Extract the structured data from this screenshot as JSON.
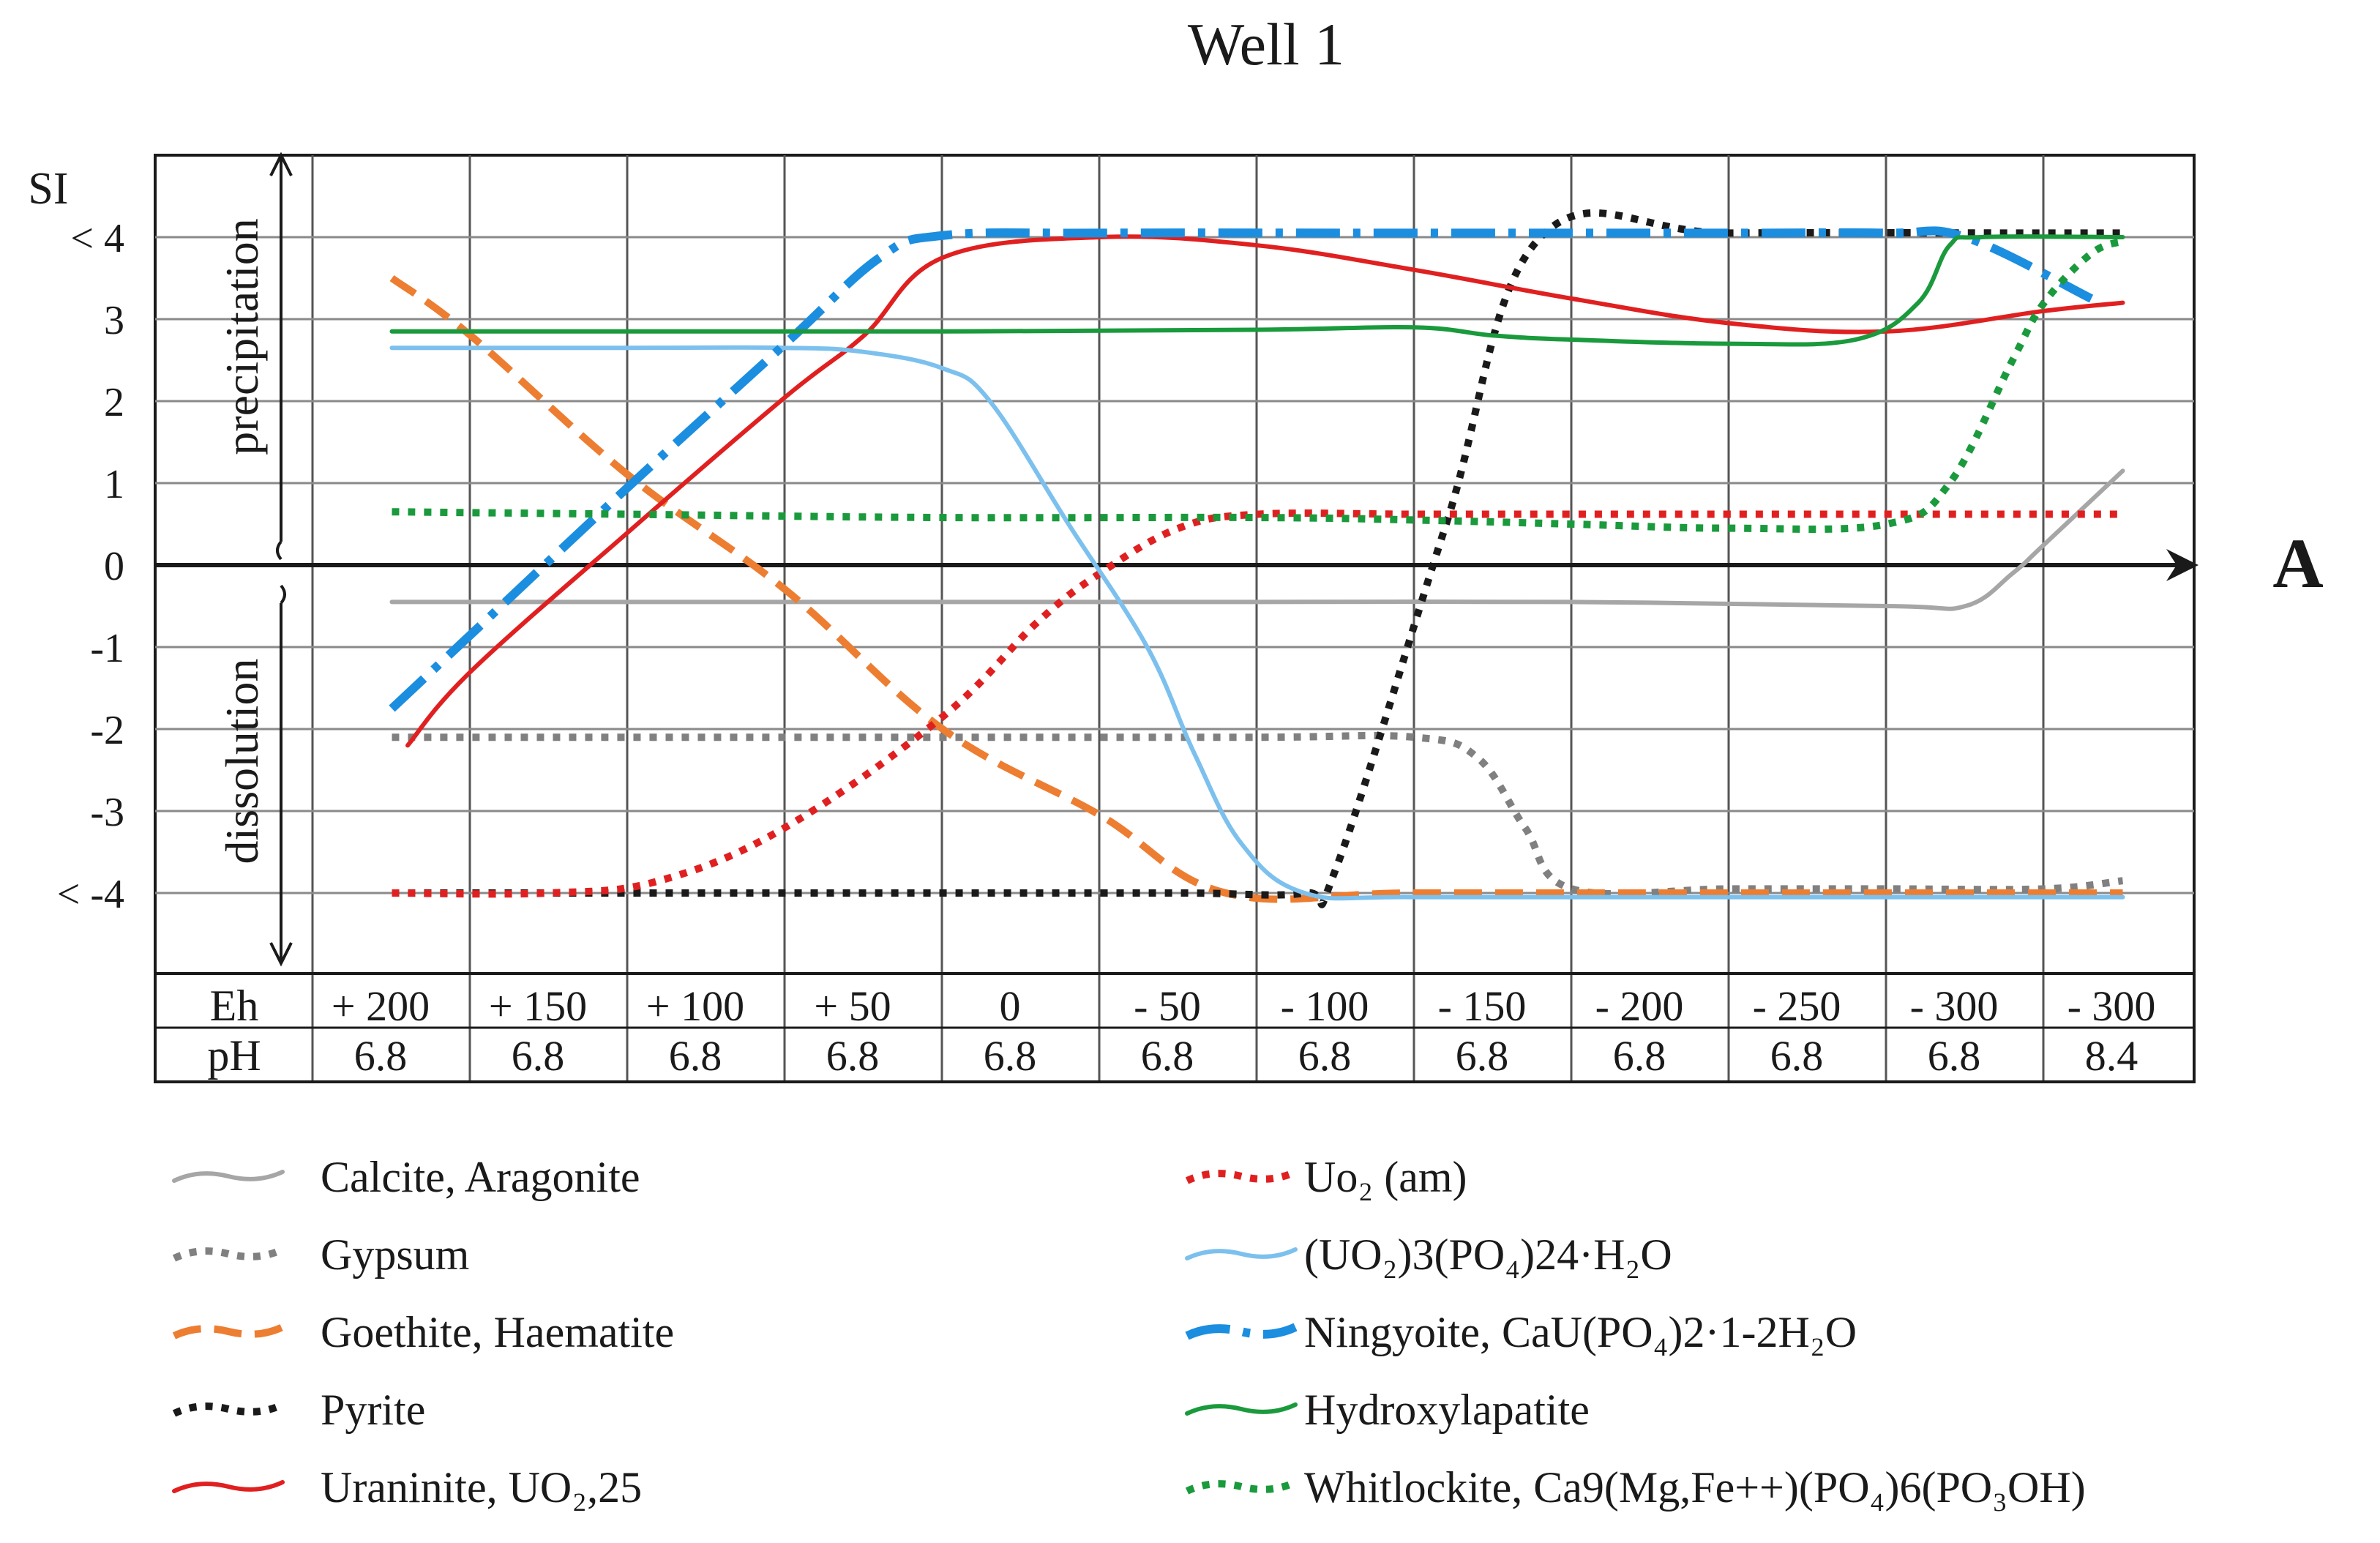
{
  "chart_data": {
    "type": "line",
    "title": "Well 1",
    "ylabel": "SI",
    "ylim": [
      -5,
      5
    ],
    "y_ticks": [
      "< 4",
      "3",
      "2",
      "1",
      "0",
      "-1",
      "-2",
      "-3",
      "< -4"
    ],
    "side_labels": {
      "upper": "precipitation",
      "lower": "dissolution"
    },
    "axis_end_label": "A",
    "row_labels": {
      "eh": "Eh",
      "ph": "pH"
    },
    "eh": [
      "+ 200",
      "+ 150",
      "+ 100",
      "+ 50",
      "0",
      "- 50",
      "- 100",
      "- 150",
      "- 200",
      "- 250",
      "- 300",
      "- 300"
    ],
    "ph": [
      "6.8",
      "6.8",
      "6.8",
      "6.8",
      "6.8",
      "6.8",
      "6.8",
      "6.8",
      "6.8",
      "6.8",
      "6.8",
      "8.4"
    ],
    "series": [
      {
        "name": "Calcite, Aragonite",
        "color": "#a6a6a6",
        "style": "solid",
        "points": [
          [
            0.5,
            -0.45
          ],
          [
            1,
            -0.45
          ],
          [
            2,
            -0.45
          ],
          [
            4,
            -0.45
          ],
          [
            6,
            -0.45
          ],
          [
            8,
            -0.45
          ],
          [
            10,
            -0.5
          ],
          [
            10.5,
            -0.5
          ],
          [
            10.8,
            -0.1
          ],
          [
            11,
            0.25
          ],
          [
            11.5,
            1.15
          ]
        ]
      },
      {
        "name": "Gypsum",
        "color": "#808080",
        "style": "dotted",
        "points": [
          [
            0.5,
            -2.1
          ],
          [
            2,
            -2.1
          ],
          [
            4,
            -2.1
          ],
          [
            6,
            -2.1
          ],
          [
            7,
            -2.1
          ],
          [
            7.4,
            -2.35
          ],
          [
            7.7,
            -3.2
          ],
          [
            8,
            -3.95
          ],
          [
            9,
            -3.95
          ],
          [
            10,
            -3.95
          ],
          [
            11,
            -3.95
          ],
          [
            11.5,
            -3.85
          ]
        ]
      },
      {
        "name": "Goethite, Haematite",
        "color": "#ed7d31",
        "style": "dashed",
        "points": [
          [
            0.5,
            3.5
          ],
          [
            1,
            2.8
          ],
          [
            2,
            1.1
          ],
          [
            3,
            -0.3
          ],
          [
            4,
            -2.0
          ],
          [
            5,
            -3.05
          ],
          [
            5.8,
            -4.0
          ],
          [
            7,
            -4.0
          ],
          [
            9,
            -4.0
          ],
          [
            11.5,
            -4.0
          ]
        ]
      },
      {
        "name": "Pyrite",
        "color": "#1a1a1a",
        "style": "dotted",
        "points": [
          [
            0.5,
            -4.0
          ],
          [
            2,
            -4.0
          ],
          [
            4,
            -4.0
          ],
          [
            5.5,
            -4.0
          ],
          [
            6.3,
            -4.0
          ],
          [
            6.5,
            -3.7
          ],
          [
            7.2,
            0.5
          ],
          [
            7.8,
            4.0
          ],
          [
            9,
            4.05
          ],
          [
            11,
            4.05
          ],
          [
            11.5,
            4.05
          ]
        ]
      },
      {
        "name": "Uraninite, UO₂,25",
        "color": "#e02020",
        "style": "solid",
        "points": [
          [
            0.6,
            -2.2
          ],
          [
            1,
            -1.3
          ],
          [
            2,
            0.4
          ],
          [
            3,
            2.05
          ],
          [
            3.5,
            2.8
          ],
          [
            4,
            3.75
          ],
          [
            5,
            4.0
          ],
          [
            6,
            3.9
          ],
          [
            7,
            3.6
          ],
          [
            8,
            3.25
          ],
          [
            9,
            2.95
          ],
          [
            10,
            2.85
          ],
          [
            11,
            3.1
          ],
          [
            11.5,
            3.2
          ]
        ]
      },
      {
        "name": "Uo₂ (am)",
        "color": "#e02020",
        "style": "dotted",
        "points": [
          [
            0.5,
            -4.0
          ],
          [
            1.5,
            -4.0
          ],
          [
            2.2,
            -3.85
          ],
          [
            3,
            -3.2
          ],
          [
            4,
            -1.85
          ],
          [
            4.6,
            -0.7
          ],
          [
            5,
            -0.1
          ],
          [
            5.5,
            0.45
          ],
          [
            6,
            0.62
          ],
          [
            7,
            0.62
          ],
          [
            8,
            0.62
          ],
          [
            9,
            0.62
          ],
          [
            10,
            0.62
          ],
          [
            11.5,
            0.62
          ]
        ]
      },
      {
        "name": "(UO₂)3(PO₄)24·H₂O",
        "color": "#7cc0ee",
        "style": "solid",
        "points": [
          [
            0.5,
            2.65
          ],
          [
            1,
            2.65
          ],
          [
            2,
            2.65
          ],
          [
            3,
            2.65
          ],
          [
            3.5,
            2.6
          ],
          [
            4,
            2.4
          ],
          [
            4.3,
            2.0
          ],
          [
            4.8,
            0.5
          ],
          [
            5.3,
            -1.0
          ],
          [
            5.6,
            -2.3
          ],
          [
            5.9,
            -3.4
          ],
          [
            6.3,
            -4.0
          ],
          [
            7,
            -4.05
          ],
          [
            9,
            -4.05
          ],
          [
            11.5,
            -4.05
          ]
        ]
      },
      {
        "name": "Ningyoite, CaU(PO₄)2·1-2H₂O",
        "color": "#1b8ee0",
        "style": "dashdot",
        "points": [
          [
            0.5,
            -1.75
          ],
          [
            1,
            -0.85
          ],
          [
            2,
            0.95
          ],
          [
            3,
            2.7
          ],
          [
            3.6,
            3.75
          ],
          [
            4,
            4.02
          ],
          [
            5,
            4.05
          ],
          [
            7,
            4.05
          ],
          [
            9,
            4.05
          ],
          [
            10,
            4.05
          ],
          [
            10.5,
            4.0
          ],
          [
            11.3,
            3.25
          ]
        ]
      },
      {
        "name": "Hydroxylapatite",
        "color": "#1a9a3c",
        "style": "solid",
        "points": [
          [
            0.5,
            2.85
          ],
          [
            2,
            2.85
          ],
          [
            4,
            2.85
          ],
          [
            6,
            2.87
          ],
          [
            7,
            2.9
          ],
          [
            7.5,
            2.8
          ],
          [
            8,
            2.75
          ],
          [
            9,
            2.7
          ],
          [
            9.8,
            2.75
          ],
          [
            10.2,
            3.2
          ],
          [
            10.4,
            3.9
          ],
          [
            10.6,
            4.0
          ],
          [
            11.5,
            4.0
          ]
        ]
      },
      {
        "name": "Whitlockite, Ca9(Mg,Fe++)(PO₄)6(PO₃OH)",
        "color": "#1a9a3c",
        "style": "dotted",
        "points": [
          [
            0.5,
            0.65
          ],
          [
            2,
            0.62
          ],
          [
            4,
            0.58
          ],
          [
            6,
            0.58
          ],
          [
            7,
            0.55
          ],
          [
            8,
            0.5
          ],
          [
            9,
            0.45
          ],
          [
            10,
            0.5
          ],
          [
            10.4,
            1.0
          ],
          [
            10.8,
            2.5
          ],
          [
            11,
            3.2
          ],
          [
            11.3,
            3.8
          ],
          [
            11.5,
            3.95
          ]
        ]
      }
    ]
  },
  "legend": [
    {
      "label": "Calcite, Aragonite",
      "color": "#a6a6a6",
      "style": "solid"
    },
    {
      "label": "Gypsum",
      "color": "#808080",
      "style": "dotted"
    },
    {
      "label": "Goethite, Haematite",
      "color": "#ed7d31",
      "style": "dashed"
    },
    {
      "label": "Pyrite",
      "color": "#1a1a1a",
      "style": "dotted"
    },
    {
      "label": "Uraninite, UO₂,25",
      "color": "#e02020",
      "style": "solid"
    },
    {
      "label": "Uo₂ (am)",
      "color": "#e02020",
      "style": "dotted"
    },
    {
      "label": "(UO₂)3(PO₄)24·H₂O",
      "color": "#7cc0ee",
      "style": "solid"
    },
    {
      "label": "Ningyoite, CaU(PO₄)2·1-2H₂O",
      "color": "#1b8ee0",
      "style": "dashdot"
    },
    {
      "label": "Hydroxylapatite",
      "color": "#1a9a3c",
      "style": "solid"
    },
    {
      "label": "Whitlockite, Ca9(Mg,Fe++)(PO₄)6(PO₃OH)",
      "color": "#1a9a3c",
      "style": "dotted"
    }
  ]
}
